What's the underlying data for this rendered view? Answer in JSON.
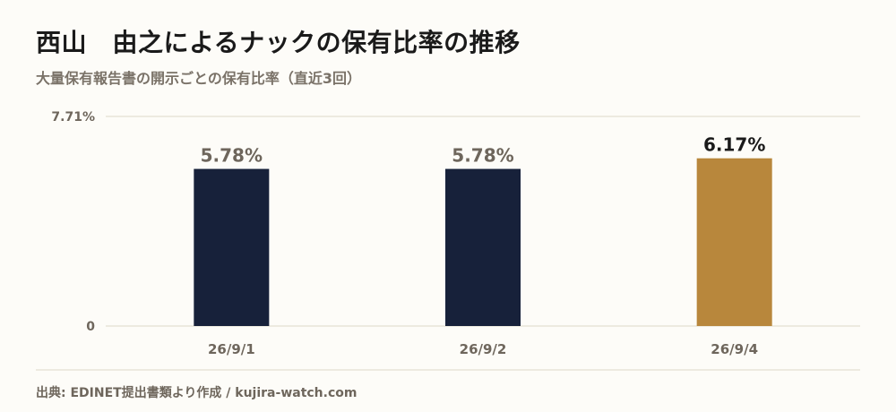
{
  "header": {
    "title": "西山　由之によるナックの保有比率の推移",
    "subtitle": "大量保有報告書の開示ごとの保有比率（直近3回）"
  },
  "footer": {
    "source": "出典: EDINET提出書類より作成 / kujira-watch.com"
  },
  "colors": {
    "bar_default": "#17213a",
    "bar_highlight": "#b8873c",
    "label_default": "#6e665c",
    "label_highlight": "#1a1a1a",
    "grid": "#ddd8c8"
  },
  "chart_data": {
    "type": "bar",
    "categories": [
      "26/9/1",
      "26/9/2",
      "26/9/4"
    ],
    "values": [
      5.78,
      5.78,
      6.17
    ],
    "value_labels": [
      "5.78%",
      "5.78%",
      "6.17%"
    ],
    "highlight_index": 2,
    "ylim": [
      0,
      7.71
    ],
    "y_ticks": [
      {
        "value": 0,
        "label": "0"
      },
      {
        "value": 7.71,
        "label": "7.71%"
      }
    ],
    "grid": true
  }
}
